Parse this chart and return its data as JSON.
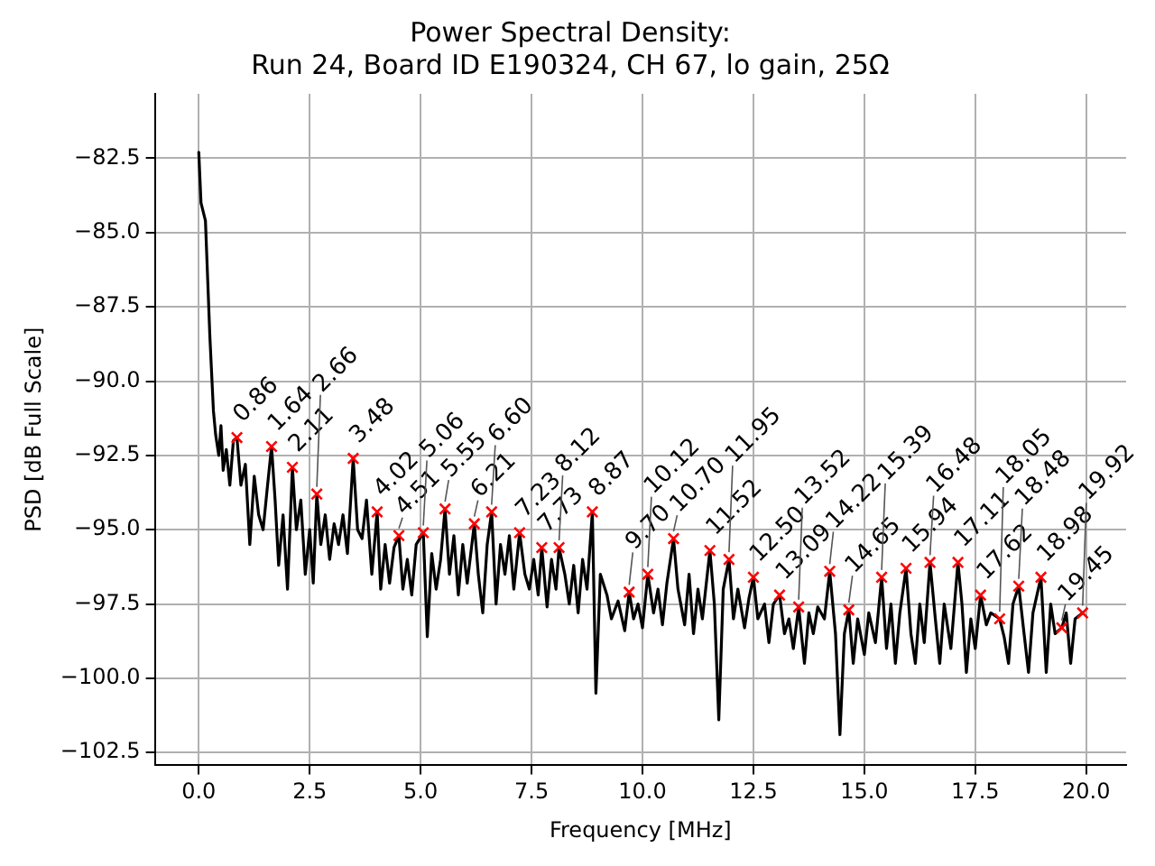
{
  "chart_data": {
    "type": "line",
    "title": "Power Spectral Density:\nRun 24, Board ID E190324, CH 67, lo gain, 25Ω",
    "xlabel": "Frequency [MHz]",
    "ylabel": "PSD [dB Full Scale]",
    "xlim": [
      -0.99,
      20.9
    ],
    "ylim": [
      -102.93,
      -80.33
    ],
    "xticks": [
      {
        "value": 0,
        "label": "0.0"
      },
      {
        "value": 2.5,
        "label": "2.5"
      },
      {
        "value": 5,
        "label": "5.0"
      },
      {
        "value": 7.5,
        "label": "7.5"
      },
      {
        "value": 10,
        "label": "10.0"
      },
      {
        "value": 12.5,
        "label": "12.5"
      },
      {
        "value": 15,
        "label": "15.0"
      },
      {
        "value": 17.5,
        "label": "17.5"
      },
      {
        "value": 20,
        "label": "20.0"
      }
    ],
    "yticks": [
      {
        "value": -82.5,
        "label": "−82.5"
      },
      {
        "value": -85,
        "label": "−85.0"
      },
      {
        "value": -87.5,
        "label": "−87.5"
      },
      {
        "value": -90,
        "label": "−90.0"
      },
      {
        "value": -92.5,
        "label": "−92.5"
      },
      {
        "value": -95,
        "label": "−95.0"
      },
      {
        "value": -97.5,
        "label": "−97.5"
      },
      {
        "value": -100,
        "label": "−100.0"
      },
      {
        "value": -102.5,
        "label": "−102.5"
      }
    ],
    "grid": true,
    "series": [
      {
        "type": "line",
        "color": "#000000",
        "x": [
          0.0,
          0.05,
          0.15,
          0.25,
          0.33,
          0.38,
          0.45,
          0.5,
          0.55,
          0.62,
          0.7,
          0.78,
          0.86,
          0.95,
          1.05,
          1.15,
          1.25,
          1.35,
          1.45,
          1.55,
          1.64,
          1.72,
          1.8,
          1.9,
          2.0,
          2.11,
          2.2,
          2.3,
          2.4,
          2.5,
          2.58,
          2.66,
          2.75,
          2.85,
          2.95,
          3.05,
          3.15,
          3.25,
          3.35,
          3.48,
          3.58,
          3.68,
          3.78,
          3.9,
          4.02,
          4.1,
          4.2,
          4.3,
          4.4,
          4.51,
          4.6,
          4.7,
          4.8,
          4.9,
          5.06,
          5.15,
          5.25,
          5.35,
          5.45,
          5.55,
          5.65,
          5.75,
          5.85,
          5.95,
          6.05,
          6.21,
          6.3,
          6.4,
          6.5,
          6.6,
          6.7,
          6.8,
          6.9,
          7.0,
          7.1,
          7.23,
          7.35,
          7.45,
          7.55,
          7.65,
          7.73,
          7.85,
          7.95,
          8.05,
          8.12,
          8.25,
          8.35,
          8.45,
          8.55,
          8.65,
          8.75,
          8.87,
          8.95,
          9.05,
          9.2,
          9.3,
          9.45,
          9.6,
          9.7,
          9.8,
          9.9,
          10.0,
          10.12,
          10.25,
          10.35,
          10.45,
          10.55,
          10.7,
          10.8,
          10.95,
          11.05,
          11.15,
          11.25,
          11.35,
          11.52,
          11.62,
          11.72,
          11.82,
          11.95,
          12.05,
          12.15,
          12.3,
          12.4,
          12.5,
          12.6,
          12.75,
          12.85,
          12.95,
          13.09,
          13.2,
          13.3,
          13.4,
          13.52,
          13.65,
          13.75,
          13.85,
          13.95,
          14.1,
          14.22,
          14.35,
          14.45,
          14.55,
          14.65,
          14.75,
          14.85,
          15.0,
          15.1,
          15.25,
          15.39,
          15.5,
          15.6,
          15.7,
          15.8,
          15.94,
          16.05,
          16.15,
          16.25,
          16.35,
          16.48,
          16.6,
          16.7,
          16.8,
          16.95,
          17.11,
          17.2,
          17.3,
          17.4,
          17.5,
          17.62,
          17.75,
          17.85,
          18.05,
          18.15,
          18.25,
          18.35,
          18.48,
          18.6,
          18.7,
          18.8,
          18.98,
          19.1,
          19.2,
          19.3,
          19.45,
          19.55,
          19.65,
          19.75,
          19.92
        ],
        "values": [
          -82.3,
          -84.0,
          -84.6,
          -88.5,
          -91.0,
          -91.8,
          -92.5,
          -91.5,
          -93.0,
          -92.3,
          -93.5,
          -92.0,
          -91.9,
          -93.5,
          -92.8,
          -95.5,
          -93.2,
          -94.5,
          -95.0,
          -93.5,
          -92.2,
          -94.0,
          -96.2,
          -94.5,
          -97.0,
          -92.9,
          -95.0,
          -94.0,
          -96.5,
          -95.0,
          -96.8,
          -93.8,
          -95.5,
          -94.5,
          -96.0,
          -94.8,
          -95.5,
          -94.5,
          -95.8,
          -92.6,
          -95.0,
          -95.3,
          -94.0,
          -96.5,
          -94.4,
          -97.0,
          -95.5,
          -96.8,
          -95.6,
          -95.2,
          -97.0,
          -96.0,
          -97.2,
          -95.5,
          -95.1,
          -98.6,
          -95.8,
          -97.0,
          -96.0,
          -94.3,
          -96.5,
          -95.2,
          -97.2,
          -95.5,
          -96.8,
          -94.8,
          -96.5,
          -97.8,
          -95.5,
          -94.4,
          -97.5,
          -95.5,
          -96.5,
          -95.2,
          -97.0,
          -95.1,
          -96.5,
          -97.0,
          -96.0,
          -97.2,
          -95.6,
          -97.6,
          -96.0,
          -97.0,
          -95.6,
          -96.5,
          -97.5,
          -96.2,
          -97.8,
          -96.0,
          -97.0,
          -94.4,
          -100.5,
          -96.5,
          -97.2,
          -98.0,
          -97.4,
          -98.4,
          -97.1,
          -98.0,
          -97.5,
          -98.3,
          -96.5,
          -97.8,
          -97.0,
          -98.2,
          -96.8,
          -95.3,
          -97.0,
          -98.2,
          -96.5,
          -98.5,
          -97.0,
          -98.0,
          -95.7,
          -97.5,
          -101.4,
          -97.0,
          -96.0,
          -98.0,
          -97.0,
          -98.3,
          -97.3,
          -96.6,
          -98.0,
          -97.5,
          -98.8,
          -97.5,
          -97.2,
          -98.5,
          -98.0,
          -99.0,
          -97.6,
          -99.5,
          -97.8,
          -98.5,
          -97.6,
          -98.0,
          -96.4,
          -98.5,
          -101.9,
          -98.5,
          -97.7,
          -99.5,
          -98.0,
          -99.2,
          -97.8,
          -98.8,
          -96.6,
          -99.0,
          -97.5,
          -99.5,
          -97.8,
          -96.3,
          -98.5,
          -99.5,
          -97.5,
          -98.8,
          -96.1,
          -98.0,
          -99.5,
          -97.5,
          -99.0,
          -96.1,
          -97.5,
          -99.8,
          -98.0,
          -99.0,
          -97.2,
          -98.2,
          -97.8,
          -98.0,
          -98.6,
          -99.5,
          -97.5,
          -96.9,
          -98.5,
          -99.8,
          -97.8,
          -96.6,
          -99.8,
          -97.5,
          -98.5,
          -98.3,
          -97.8,
          -99.5,
          -98.0,
          -97.8
        ]
      },
      {
        "type": "scatter",
        "color": "#ff0000",
        "marker": "cross",
        "x": [
          0.86,
          1.64,
          2.11,
          2.66,
          3.48,
          4.02,
          4.51,
          5.06,
          5.55,
          6.21,
          6.6,
          7.23,
          7.73,
          8.12,
          8.87,
          9.7,
          10.12,
          10.7,
          11.52,
          11.95,
          12.5,
          13.09,
          13.52,
          14.22,
          14.65,
          15.39,
          15.94,
          16.48,
          17.11,
          17.62,
          18.05,
          18.48,
          18.98,
          19.45,
          19.92
        ],
        "values": [
          -91.9,
          -92.2,
          -92.9,
          -93.8,
          -92.6,
          -94.4,
          -95.2,
          -95.1,
          -94.3,
          -94.8,
          -94.4,
          -95.1,
          -95.6,
          -95.6,
          -94.4,
          -97.1,
          -96.5,
          -95.3,
          -95.7,
          -96.0,
          -96.6,
          -97.2,
          -97.6,
          -96.4,
          -97.7,
          -96.6,
          -96.3,
          -96.1,
          -96.1,
          -97.2,
          -98.0,
          -96.9,
          -96.6,
          -98.3,
          -97.8
        ]
      }
    ],
    "annotations": [
      {
        "text": "0.86",
        "x": 0.86,
        "y": -91.9
      },
      {
        "text": "1.64",
        "x": 1.64,
        "y": -92.2
      },
      {
        "text": "2.11",
        "x": 2.11,
        "y": -92.9
      },
      {
        "text": "2.66",
        "x": 2.66,
        "y": -93.8
      },
      {
        "text": "3.48",
        "x": 3.48,
        "y": -92.6
      },
      {
        "text": "4.02",
        "x": 4.02,
        "y": -94.4
      },
      {
        "text": "4.51",
        "x": 4.51,
        "y": -95.2
      },
      {
        "text": "5.06",
        "x": 5.06,
        "y": -95.1
      },
      {
        "text": "5.55",
        "x": 5.55,
        "y": -94.3
      },
      {
        "text": "6.21",
        "x": 6.21,
        "y": -94.8
      },
      {
        "text": "6.60",
        "x": 6.6,
        "y": -94.4
      },
      {
        "text": "7.23",
        "x": 7.23,
        "y": -95.1
      },
      {
        "text": "7.73",
        "x": 7.73,
        "y": -95.6
      },
      {
        "text": "8.12",
        "x": 8.12,
        "y": -95.6
      },
      {
        "text": "8.87",
        "x": 8.87,
        "y": -94.4
      },
      {
        "text": "9.70",
        "x": 9.7,
        "y": -97.1
      },
      {
        "text": "10.12",
        "x": 10.12,
        "y": -96.5
      },
      {
        "text": "10.70",
        "x": 10.7,
        "y": -95.3
      },
      {
        "text": "11.52",
        "x": 11.52,
        "y": -95.7
      },
      {
        "text": "11.95",
        "x": 11.95,
        "y": -96.0
      },
      {
        "text": "12.50",
        "x": 12.5,
        "y": -96.6
      },
      {
        "text": "13.09",
        "x": 13.09,
        "y": -97.2
      },
      {
        "text": "13.52",
        "x": 13.52,
        "y": -97.6
      },
      {
        "text": "14.22",
        "x": 14.22,
        "y": -96.4
      },
      {
        "text": "14.65",
        "x": 14.65,
        "y": -97.7
      },
      {
        "text": "15.39",
        "x": 15.39,
        "y": -96.6
      },
      {
        "text": "15.94",
        "x": 15.94,
        "y": -96.3
      },
      {
        "text": "16.48",
        "x": 16.48,
        "y": -96.1
      },
      {
        "text": "17.11",
        "x": 17.11,
        "y": -96.1
      },
      {
        "text": "17.62",
        "x": 17.62,
        "y": -97.2
      },
      {
        "text": "18.05",
        "x": 18.05,
        "y": -98.0
      },
      {
        "text": "18.48",
        "x": 18.48,
        "y": -96.9
      },
      {
        "text": "18.98",
        "x": 18.98,
        "y": -96.6
      },
      {
        "text": "19.45",
        "x": 19.45,
        "y": -98.3
      },
      {
        "text": "19.92",
        "x": 19.92,
        "y": -97.8
      }
    ]
  }
}
